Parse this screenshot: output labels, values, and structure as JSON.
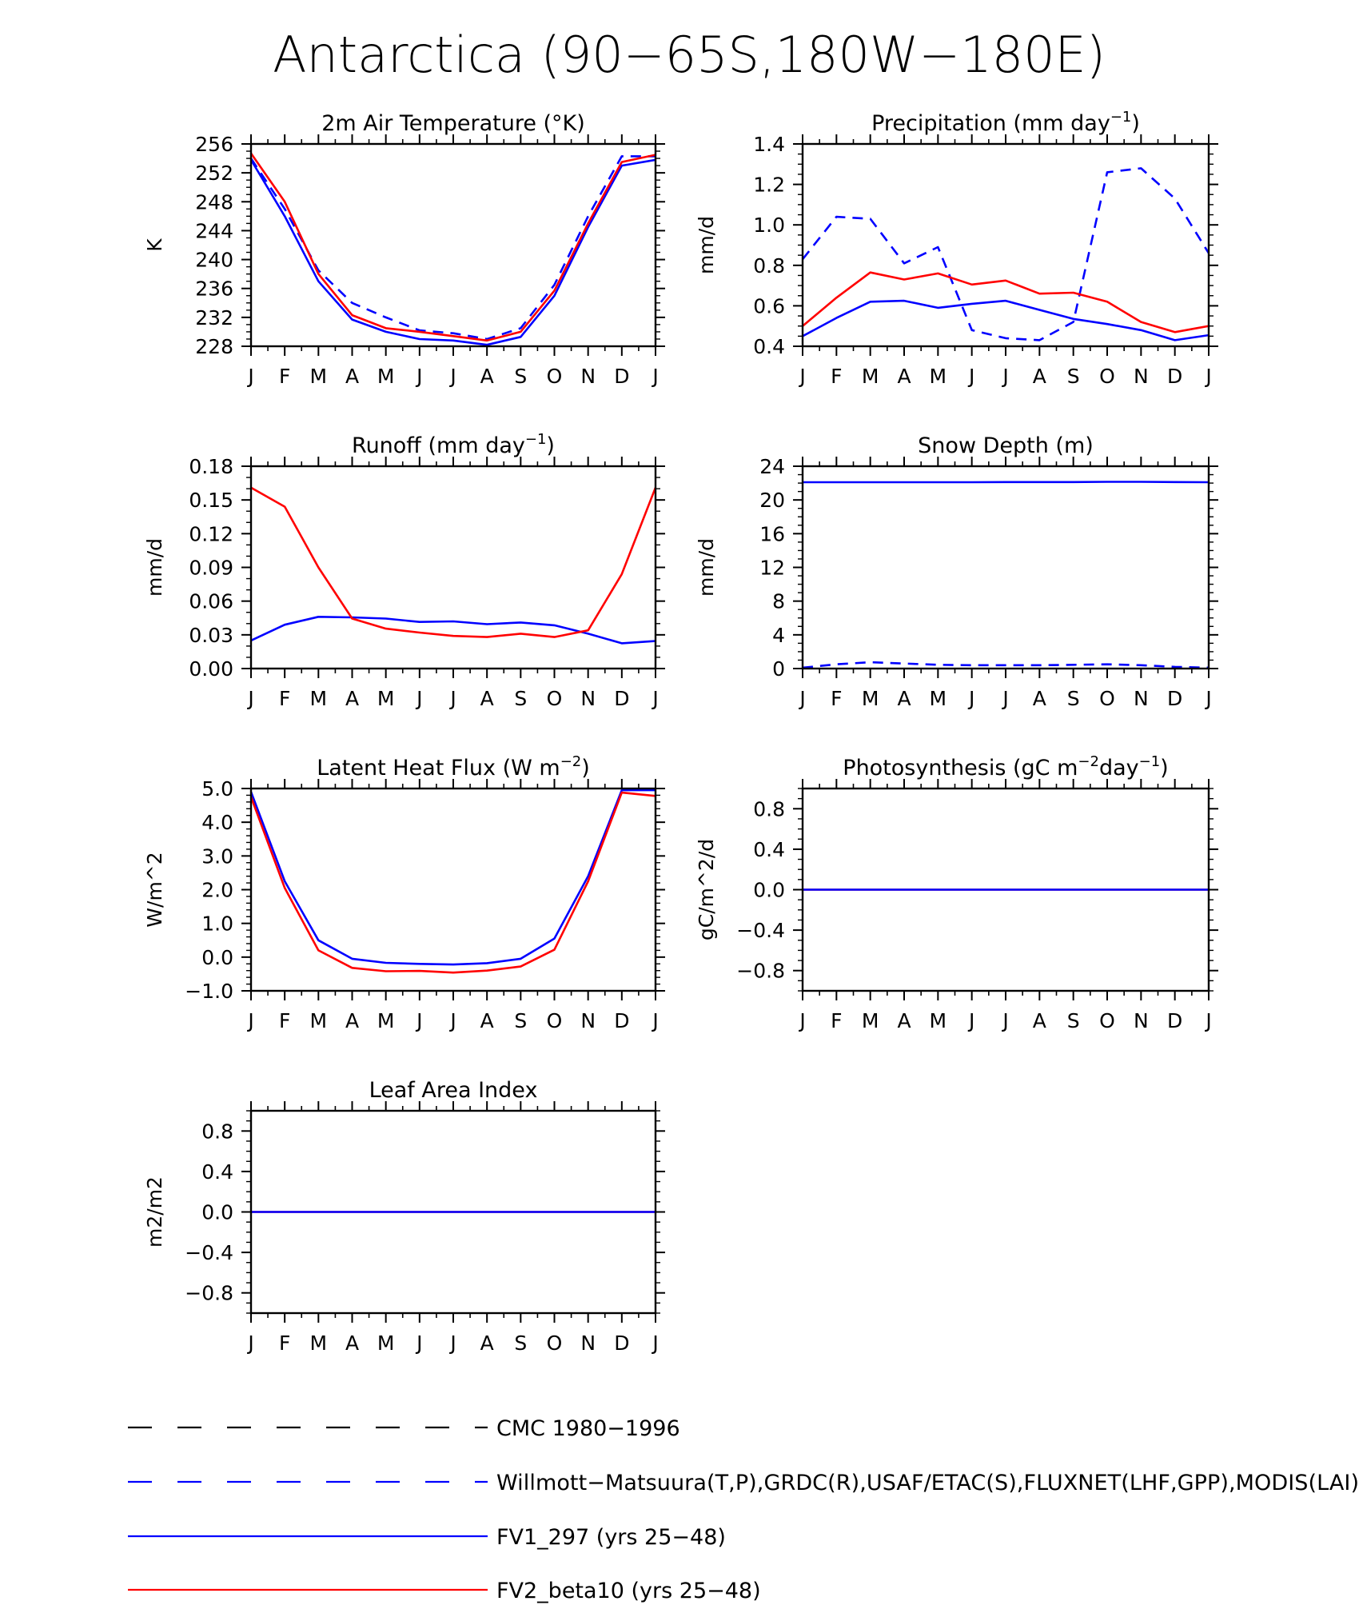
{
  "page_title": "Antarctica (90−65S,180W−180E)",
  "colors": {
    "cmc": "#000000",
    "obs": "#0000ff",
    "fv1": "#0000ff",
    "fv2": "#ff0000",
    "axis": "#000000"
  },
  "legend": [
    {
      "key": "cmc",
      "label": "CMC 1980−1996",
      "style": "dashed",
      "color": "#000000"
    },
    {
      "key": "obs",
      "label": "Willmott−Matsuura(T,P),GRDC(R),USAF/ETAC(S),FLUXNET(LHF,GPP),MODIS(LAI)",
      "style": "dashed",
      "color": "#0000ff"
    },
    {
      "key": "fv1",
      "label": "FV1_297 (yrs 25−48)",
      "style": "solid",
      "color": "#0000ff"
    },
    {
      "key": "fv2",
      "label": "FV2_beta10 (yrs 25−48)",
      "style": "solid",
      "color": "#ff0000"
    }
  ],
  "chart_data": [
    {
      "id": "temp",
      "type": "line",
      "title": "2m Air Temperature (°K)",
      "ylabel": "K",
      "categories": [
        "J",
        "F",
        "M",
        "A",
        "M",
        "J",
        "J",
        "A",
        "S",
        "O",
        "N",
        "D",
        "J"
      ],
      "ylim": [
        228,
        256
      ],
      "yticks": [
        228,
        232,
        236,
        240,
        244,
        248,
        252,
        256
      ],
      "ytick_labels": [
        "228",
        "232",
        "236",
        "240",
        "244",
        "248",
        "252",
        "256"
      ],
      "yminor": 1,
      "series": [
        {
          "name": "Willmott−Matsuura",
          "key": "obs",
          "style": "dashed",
          "values": [
            254.0,
            247.0,
            238.5,
            234.0,
            232.0,
            230.2,
            229.8,
            229.0,
            230.5,
            236.5,
            246.0,
            254.3,
            254.3
          ]
        },
        {
          "name": "FV1_297",
          "key": "fv1",
          "style": "solid",
          "values": [
            253.8,
            246.0,
            237.0,
            231.7,
            230.0,
            229.0,
            228.8,
            228.2,
            229.3,
            235.0,
            244.5,
            253.0,
            253.8
          ]
        },
        {
          "name": "FV2_beta10",
          "key": "fv2",
          "style": "solid",
          "values": [
            254.7,
            248.0,
            238.0,
            232.3,
            230.5,
            230.0,
            229.4,
            228.8,
            230.0,
            235.7,
            245.0,
            253.5,
            254.5
          ]
        }
      ]
    },
    {
      "id": "precip",
      "type": "line",
      "title": "Precipitation (mm day",
      "title_sup": "−1",
      "title_end": ")",
      "ylabel": "mm/d",
      "categories": [
        "J",
        "F",
        "M",
        "A",
        "M",
        "J",
        "J",
        "A",
        "S",
        "O",
        "N",
        "D",
        "J"
      ],
      "ylim": [
        0.4,
        1.4
      ],
      "yticks": [
        0.4,
        0.6,
        0.8,
        1.0,
        1.2,
        1.4
      ],
      "ytick_labels": [
        "0.4",
        "0.6",
        "0.8",
        "1.0",
        "1.2",
        "1.4"
      ],
      "yminor": 0.05,
      "series": [
        {
          "name": "Willmott−Matsuura",
          "key": "obs",
          "style": "dashed",
          "values": [
            0.83,
            1.04,
            1.03,
            0.81,
            0.89,
            0.48,
            0.44,
            0.43,
            0.52,
            1.26,
            1.28,
            1.13,
            0.86
          ]
        },
        {
          "name": "FV1_297",
          "key": "fv1",
          "style": "solid",
          "values": [
            0.45,
            0.54,
            0.62,
            0.625,
            0.59,
            0.61,
            0.625,
            0.58,
            0.535,
            0.51,
            0.48,
            0.43,
            0.455
          ]
        },
        {
          "name": "FV2_beta10",
          "key": "fv2",
          "style": "solid",
          "values": [
            0.5,
            0.64,
            0.765,
            0.73,
            0.76,
            0.705,
            0.725,
            0.66,
            0.665,
            0.62,
            0.52,
            0.47,
            0.5
          ]
        }
      ]
    },
    {
      "id": "runoff",
      "type": "line",
      "title": "Runoff (mm day",
      "title_sup": "−1",
      "title_end": ")",
      "ylabel": "mm/d",
      "categories": [
        "J",
        "F",
        "M",
        "A",
        "M",
        "J",
        "J",
        "A",
        "S",
        "O",
        "N",
        "D",
        "J"
      ],
      "ylim": [
        0,
        0.18
      ],
      "yticks": [
        0,
        0.03,
        0.06,
        0.09,
        0.12,
        0.15,
        0.18
      ],
      "ytick_labels": [
        "0.00",
        "0.03",
        "0.06",
        "0.09",
        "0.12",
        "0.15",
        "0.18"
      ],
      "yminor": 0.01,
      "series": [
        {
          "name": "FV1_297",
          "key": "fv1",
          "style": "solid",
          "values": [
            0.025,
            0.039,
            0.046,
            0.0455,
            0.0445,
            0.0415,
            0.042,
            0.0395,
            0.041,
            0.0385,
            0.031,
            0.0225,
            0.0245
          ]
        },
        {
          "name": "FV2_beta10",
          "key": "fv2",
          "style": "solid",
          "values": [
            0.161,
            0.144,
            0.09,
            0.0445,
            0.0355,
            0.032,
            0.029,
            0.028,
            0.031,
            0.028,
            0.034,
            0.084,
            0.161
          ]
        }
      ]
    },
    {
      "id": "snow",
      "type": "line",
      "title": "Snow Depth (m)",
      "ylabel": "mm/d",
      "categories": [
        "J",
        "F",
        "M",
        "A",
        "M",
        "J",
        "J",
        "A",
        "S",
        "O",
        "N",
        "D",
        "J"
      ],
      "ylim": [
        0,
        24
      ],
      "yticks": [
        0,
        4,
        8,
        12,
        16,
        20,
        24
      ],
      "ytick_labels": [
        "0",
        "4",
        "8",
        "12",
        "16",
        "20",
        "24"
      ],
      "yminor": 1,
      "series": [
        {
          "name": "USAF/ETAC",
          "key": "obs",
          "style": "dashed",
          "values": [
            0.1,
            0.5,
            0.75,
            0.6,
            0.45,
            0.4,
            0.4,
            0.4,
            0.45,
            0.5,
            0.4,
            0.2,
            0.1
          ]
        },
        {
          "name": "FV1_297",
          "key": "fv1",
          "style": "solid",
          "values": [
            22.1,
            22.1,
            22.1,
            22.1,
            22.1,
            22.1,
            22.12,
            22.12,
            22.12,
            22.15,
            22.15,
            22.12,
            22.1
          ]
        }
      ]
    },
    {
      "id": "lhf",
      "type": "line",
      "title": "Latent Heat Flux (W m",
      "title_sup": "−2",
      "title_end": ")",
      "ylabel": "W/m^2",
      "categories": [
        "J",
        "F",
        "M",
        "A",
        "M",
        "J",
        "J",
        "A",
        "S",
        "O",
        "N",
        "D",
        "J"
      ],
      "ylim": [
        -1.0,
        5.0
      ],
      "yticks": [
        -1.0,
        0.0,
        1.0,
        2.0,
        3.0,
        4.0,
        5.0
      ],
      "ytick_labels": [
        "−1.0",
        "0.0",
        "1.0",
        "2.0",
        "3.0",
        "4.0",
        "5.0"
      ],
      "yminor": 0.2,
      "series": [
        {
          "name": "FV1_297",
          "key": "fv1",
          "style": "solid",
          "values": [
            4.9,
            2.25,
            0.5,
            -0.05,
            -0.17,
            -0.2,
            -0.22,
            -0.18,
            -0.05,
            0.55,
            2.4,
            4.95,
            4.95
          ]
        },
        {
          "name": "FV2_beta10",
          "key": "fv2",
          "style": "solid",
          "values": [
            4.75,
            2.05,
            0.2,
            -0.32,
            -0.42,
            -0.41,
            -0.46,
            -0.4,
            -0.28,
            0.22,
            2.25,
            4.88,
            4.78
          ]
        }
      ]
    },
    {
      "id": "gpp",
      "type": "line",
      "title": "Photosynthesis (gC m",
      "title_sup": "−2",
      "title_mid": "day",
      "title_sup2": "−1",
      "title_end": ")",
      "ylabel": "gC/m^2/d",
      "categories": [
        "J",
        "F",
        "M",
        "A",
        "M",
        "J",
        "J",
        "A",
        "S",
        "O",
        "N",
        "D",
        "J"
      ],
      "ylim": [
        -1.0,
        1.0
      ],
      "yticks": [
        -0.8,
        -0.4,
        0.0,
        0.4,
        0.8
      ],
      "ytick_labels": [
        "−0.8",
        "−0.4",
        "0.0",
        "0.4",
        "0.8"
      ],
      "yminor": 0.1,
      "series": [
        {
          "name": "FV2_beta10",
          "key": "fv2",
          "style": "solid",
          "values": [
            0,
            0,
            0,
            0,
            0,
            0,
            0,
            0,
            0,
            0,
            0,
            0,
            0
          ]
        },
        {
          "name": "FV1_297",
          "key": "fv1",
          "style": "solid",
          "values": [
            0,
            0,
            0,
            0,
            0,
            0,
            0,
            0,
            0,
            0,
            0,
            0,
            0
          ]
        }
      ]
    },
    {
      "id": "lai",
      "type": "line",
      "title": "Leaf Area Index",
      "ylabel": "m2/m2",
      "categories": [
        "J",
        "F",
        "M",
        "A",
        "M",
        "J",
        "J",
        "A",
        "S",
        "O",
        "N",
        "D",
        "J"
      ],
      "ylim": [
        -1.0,
        1.0
      ],
      "yticks": [
        -0.8,
        -0.4,
        0.0,
        0.4,
        0.8
      ],
      "ytick_labels": [
        "−0.8",
        "−0.4",
        "0.0",
        "0.4",
        "0.8"
      ],
      "yminor": 0.1,
      "series": [
        {
          "name": "FV2_beta10",
          "key": "fv2",
          "style": "solid",
          "values": [
            0,
            0,
            0,
            0,
            0,
            0,
            0,
            0,
            0,
            0,
            0,
            0,
            0
          ]
        },
        {
          "name": "FV1_297",
          "key": "fv1",
          "style": "solid",
          "values": [
            0,
            0,
            0,
            0,
            0,
            0,
            0,
            0,
            0,
            0,
            0,
            0,
            0
          ]
        }
      ]
    }
  ]
}
